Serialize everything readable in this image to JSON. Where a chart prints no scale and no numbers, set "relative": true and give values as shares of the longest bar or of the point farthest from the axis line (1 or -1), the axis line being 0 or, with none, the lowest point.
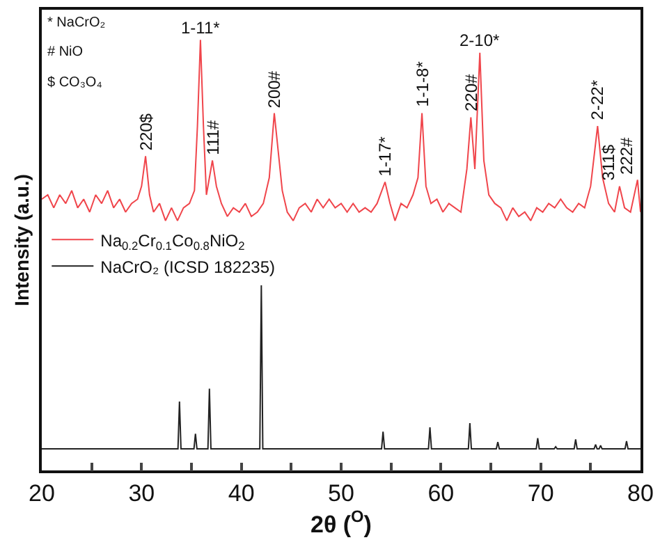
{
  "chart_data": {
    "type": "line",
    "relative": true,
    "xlabel": "2θ ($^{O}$)",
    "ylabel": "Intensity (a.u.)",
    "xlim": [
      20,
      80
    ],
    "xticks": [
      20,
      {
        "value": 25,
        "label": null
      },
      30,
      {
        "value": 35,
        "label": null
      },
      40,
      {
        "value": 45,
        "label": null
      },
      50,
      {
        "value": 55,
        "label": null
      },
      60,
      {
        "value": 65,
        "label": null
      },
      70,
      {
        "value": 75,
        "label": null
      },
      80
    ],
    "legend": "left",
    "marker": "none",
    "line_style": "solid",
    "series": [
      {
        "name": "Na$_{0.2}$Cr$_{0.1}$Co$_{0.8}$NiO$_{2}$",
        "color": "#f0454b",
        "x": [
          20,
          20.6,
          21.2,
          21.8,
          22.4,
          23,
          23.6,
          24.2,
          24.8,
          25.4,
          26,
          26.6,
          27.2,
          27.8,
          28.4,
          29,
          29.6,
          30,
          30.4,
          30.8,
          31.2,
          31.8,
          32.4,
          33,
          33.6,
          34.2,
          34.8,
          35.3,
          35.6,
          35.9,
          36.2,
          36.5,
          36.8,
          37.1,
          37.5,
          38,
          38.6,
          39.2,
          39.8,
          40.4,
          41,
          41.6,
          42.2,
          42.8,
          43.3,
          43.7,
          44.1,
          44.6,
          45.2,
          45.8,
          46.4,
          47,
          47.6,
          48.2,
          48.8,
          49.4,
          50,
          50.6,
          51.2,
          51.8,
          52.4,
          53,
          53.6,
          54.4,
          54.9,
          55.4,
          56,
          56.6,
          57.2,
          57.7,
          58.1,
          58.5,
          59,
          59.6,
          60.2,
          60.8,
          61.4,
          62,
          62.6,
          63,
          63.4,
          63.9,
          64.3,
          64.8,
          65.4,
          66,
          66.6,
          67.2,
          67.8,
          68.4,
          69,
          69.6,
          70.2,
          70.8,
          71.4,
          72,
          72.6,
          73.2,
          73.8,
          74.4,
          75,
          75.7,
          76.2,
          76.8,
          77.4,
          77.9,
          78.4,
          79,
          79.7,
          80
        ],
        "values": [
          0.63,
          0.64,
          0.61,
          0.64,
          0.62,
          0.65,
          0.61,
          0.63,
          0.6,
          0.64,
          0.62,
          0.65,
          0.61,
          0.63,
          0.6,
          0.62,
          0.63,
          0.66,
          0.73,
          0.64,
          0.6,
          0.62,
          0.58,
          0.61,
          0.58,
          0.61,
          0.62,
          0.65,
          0.8,
          1.0,
          0.8,
          0.64,
          0.68,
          0.72,
          0.66,
          0.62,
          0.59,
          0.61,
          0.6,
          0.62,
          0.59,
          0.6,
          0.62,
          0.68,
          0.83,
          0.74,
          0.65,
          0.6,
          0.58,
          0.61,
          0.62,
          0.6,
          0.63,
          0.61,
          0.63,
          0.61,
          0.62,
          0.6,
          0.62,
          0.6,
          0.61,
          0.6,
          0.62,
          0.67,
          0.62,
          0.58,
          0.62,
          0.61,
          0.64,
          0.68,
          0.83,
          0.66,
          0.62,
          0.63,
          0.6,
          0.62,
          0.61,
          0.6,
          0.7,
          0.82,
          0.7,
          0.97,
          0.72,
          0.64,
          0.62,
          0.61,
          0.58,
          0.61,
          0.59,
          0.6,
          0.58,
          0.61,
          0.6,
          0.62,
          0.61,
          0.63,
          0.61,
          0.6,
          0.62,
          0.61,
          0.66,
          0.8,
          0.68,
          0.62,
          0.6,
          0.66,
          0.61,
          0.6,
          0.675,
          0.6
        ]
      },
      {
        "name": "NaCrO₂ (ICSD 182235)",
        "color": "#222222",
        "x": [
          20,
          33.65,
          33.8,
          33.95,
          35.25,
          35.4,
          35.55,
          36.65,
          36.8,
          36.95,
          41.85,
          42.0,
          42.15,
          54.05,
          54.2,
          54.35,
          58.75,
          58.9,
          59.05,
          62.75,
          62.9,
          63.05,
          65.55,
          65.7,
          65.85,
          69.55,
          69.7,
          69.85,
          71.35,
          71.5,
          71.65,
          73.35,
          73.5,
          73.65,
          75.35,
          75.5,
          75.65,
          75.85,
          76.0,
          76.15,
          78.45,
          78.6,
          78.75,
          80
        ],
        "values": [
          0.05,
          0.05,
          0.16,
          0.05,
          0.05,
          0.085,
          0.05,
          0.05,
          0.19,
          0.05,
          0.05,
          0.43,
          0.05,
          0.05,
          0.09,
          0.05,
          0.05,
          0.1,
          0.05,
          0.05,
          0.11,
          0.05,
          0.05,
          0.066,
          0.05,
          0.05,
          0.075,
          0.05,
          0.05,
          0.055,
          0.05,
          0.05,
          0.072,
          0.05,
          0.05,
          0.06,
          0.05,
          0.05,
          0.058,
          0.05,
          0.05,
          0.068,
          0.05,
          0.05
        ]
      }
    ],
    "annotations": [
      "* NaCrO₂",
      "# NiO",
      "$ CO₃O₄",
      {
        "text": "220$",
        "x": 30.4,
        "y": 0.73
      },
      {
        "text": "1-11*",
        "x": 35.9,
        "y": 1.0
      },
      {
        "text": "111#",
        "x": 37.1,
        "y": 0.72
      },
      {
        "text": "200#",
        "x": 43.3,
        "y": 0.83
      },
      {
        "text": "1-17*",
        "x": 54.4,
        "y": 0.67
      },
      {
        "text": "1-1-8*",
        "x": 58.1,
        "y": 0.83
      },
      {
        "text": "220#",
        "x": 63.0,
        "y": 0.82
      },
      {
        "text": "2-10*",
        "x": 63.9,
        "y": 0.97
      },
      {
        "text": "2-22*",
        "x": 75.7,
        "y": 0.8
      },
      {
        "text": "311$",
        "x": 77.9,
        "y": 0.66
      },
      {
        "text": "222#",
        "x": 79.7,
        "y": 0.675
      }
    ]
  }
}
